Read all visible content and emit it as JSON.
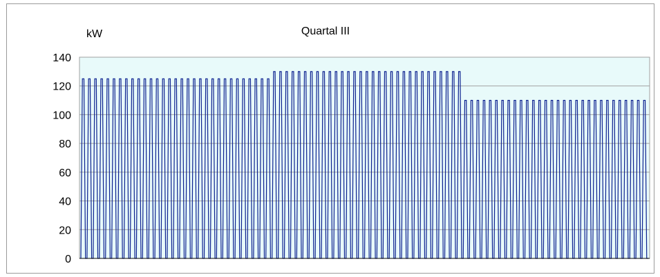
{
  "chart_data": {
    "type": "line",
    "title": "Quartal III",
    "ylabel": "kW",
    "xlabel": "",
    "ylim": [
      0,
      140
    ],
    "yticks": [
      0,
      20,
      40,
      60,
      80,
      100,
      120,
      140
    ],
    "grid": true,
    "legend": "none",
    "colors": {
      "plot_background": "#e8fafa",
      "gridline": "#a0a0a0",
      "series": "#0a1f8f",
      "frame": "#9a9a9a"
    },
    "pattern": "daily pulse: rises from 0 to the peak value and back to 0 each day",
    "series": [
      {
        "periods": [
          {
            "days": 31,
            "peak": 125
          },
          {
            "days": 31,
            "peak": 130
          },
          {
            "days": 30,
            "peak": 110
          }
        ]
      }
    ]
  }
}
